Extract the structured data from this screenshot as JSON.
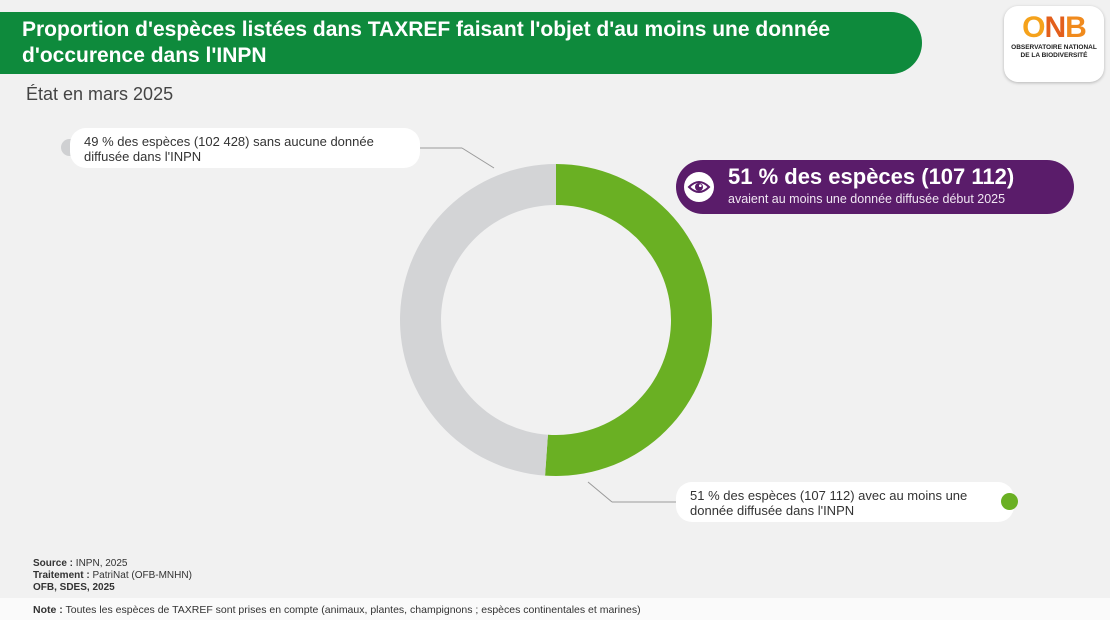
{
  "header": {
    "title_line1": "Proportion d'espèces listées dans TAXREF faisant l'objet d'au moins une donnée",
    "title_line2": "d'occurence dans l'INPN",
    "subtitle": "État en mars 2025"
  },
  "logo": {
    "letters": [
      "O",
      "N",
      "B"
    ],
    "line1": "OBSERVATOIRE NATIONAL",
    "line2": "DE LA BIODIVERSITÉ"
  },
  "chart_data": {
    "type": "pie",
    "title": "Proportion d'espèces listées dans TAXREF faisant l'objet d'au moins une donnée d'occurence dans l'INPN",
    "subtitle": "État en mars 2025",
    "categories": [
      "avec au moins une donnée diffusée dans l'INPN",
      "sans aucune donnée diffusée dans l'INPN"
    ],
    "values": [
      107112,
      102428
    ],
    "percentages": [
      51,
      49
    ],
    "colors": [
      "#6ab023",
      "#d3d4d6"
    ],
    "labels": [
      {
        "line1": "51 % des espèces (107 112) avec au moins une",
        "line2": "donnée diffusée dans l'INPN"
      },
      {
        "line1": "49 % des espèces (102 428) sans aucune donnée",
        "line2": "diffusée dans l'INPN"
      }
    ]
  },
  "callout": {
    "headline": "51 % des espèces (107 112)",
    "detail": "avaient au moins une donnée diffusée début 2025",
    "icon": "eye-icon",
    "color": "#5a1c6a"
  },
  "footer": {
    "source_label": "Source :",
    "source_value": "INPN, 2025",
    "treatment_label": "Traitement :",
    "treatment_value": "PatriNat (OFB-MNHN)",
    "credit": "OFB, SDES, 2025",
    "note_label": "Note :",
    "note_value": "Toutes les espèces de TAXREF sont prises en compte (animaux, plantes, champignons ; espèces continentales et marines)"
  }
}
